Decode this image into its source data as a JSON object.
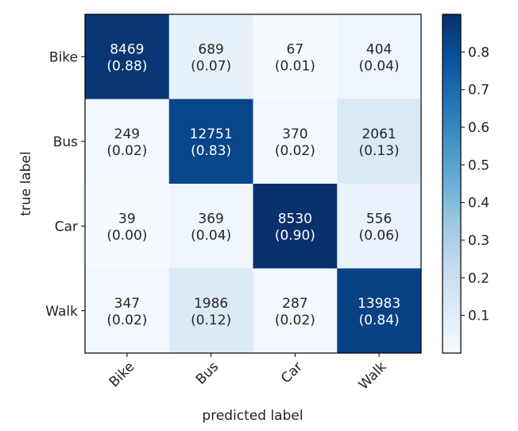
{
  "chart_data": {
    "type": "heatmap",
    "title": "",
    "xlabel": "predicted label",
    "ylabel": "true label",
    "x_categories": [
      "Bike",
      "Bus",
      "Car",
      "Walk"
    ],
    "y_categories": [
      "Bike",
      "Bus",
      "Car",
      "Walk"
    ],
    "counts": [
      [
        8469,
        689,
        67,
        404
      ],
      [
        249,
        12751,
        370,
        2061
      ],
      [
        39,
        369,
        8530,
        556
      ],
      [
        347,
        1986,
        287,
        13983
      ]
    ],
    "normalized": [
      [
        0.88,
        0.07,
        0.01,
        0.04
      ],
      [
        0.02,
        0.83,
        0.02,
        0.13
      ],
      [
        0.0,
        0.04,
        0.9,
        0.06
      ],
      [
        0.02,
        0.12,
        0.02,
        0.84
      ]
    ],
    "cell_labels": [
      [
        "(0.88)",
        "(0.07)",
        "(0.01)",
        "(0.04)"
      ],
      [
        "(0.02)",
        "(0.83)",
        "(0.02)",
        "(0.13)"
      ],
      [
        "(0.00)",
        "(0.04)",
        "(0.90)",
        "(0.06)"
      ],
      [
        "(0.02)",
        "(0.12)",
        "(0.02)",
        "(0.84)"
      ]
    ],
    "colormap": "Blues",
    "colorbar": {
      "range": [
        0.0,
        0.9
      ],
      "ticks": [
        0.1,
        0.2,
        0.3,
        0.4,
        0.5,
        0.6,
        0.7,
        0.8
      ],
      "tick_labels": [
        "0.1",
        "0.2",
        "0.3",
        "0.4",
        "0.5",
        "0.6",
        "0.7",
        "0.8"
      ]
    },
    "colors": {
      "text_dark": "#262626",
      "text_light": "#ffffff",
      "axis": "#000000"
    }
  }
}
